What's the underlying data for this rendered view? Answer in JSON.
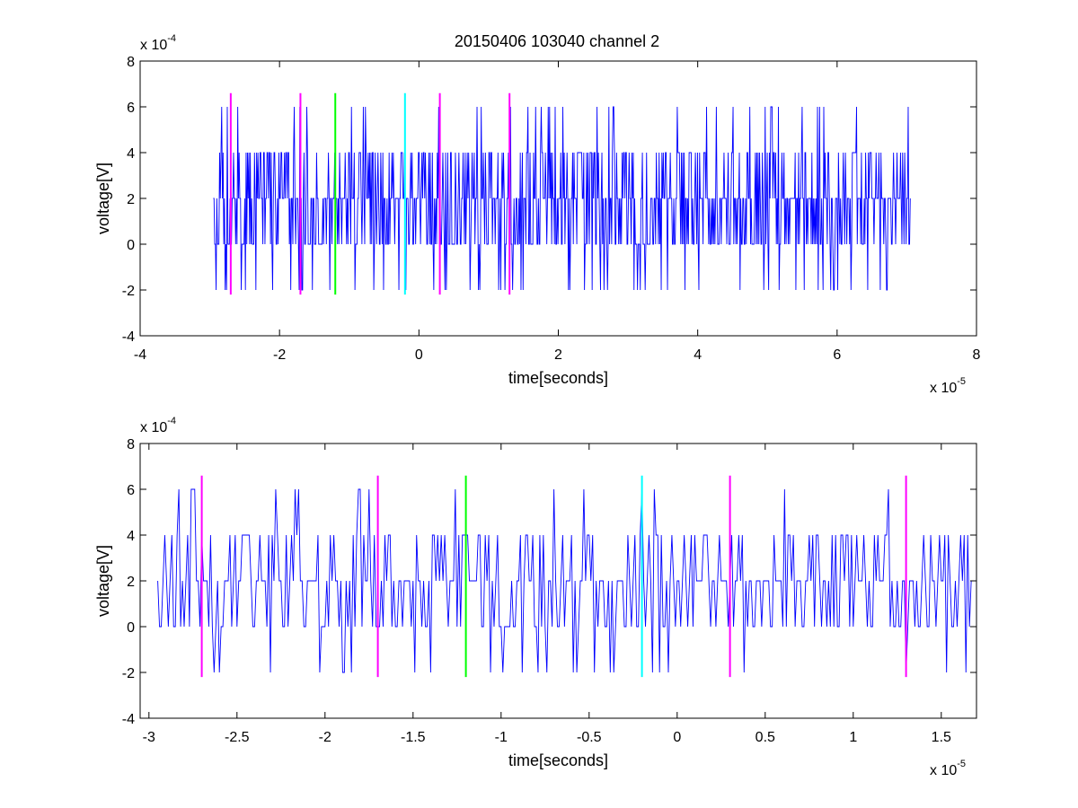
{
  "title": "20150406 103040 channel 2",
  "colors": {
    "signal": "#0000ff",
    "marker_magenta": "#ff00ff",
    "marker_green": "#00ff00",
    "marker_cyan": "#00ffff",
    "axes": "#000000",
    "background": "#ffffff"
  },
  "chart_data": [
    {
      "type": "line",
      "title": "20150406 103040 channel 2",
      "xlabel": "time[seconds]",
      "ylabel": "voltage[V]",
      "x_multiplier_label": "x 10",
      "x_multiplier_exp": "-5",
      "y_multiplier_label": "x 10",
      "y_multiplier_exp": "-4",
      "xlim": [
        -4,
        8
      ],
      "ylim": [
        -4,
        8
      ],
      "xticks": [
        -4,
        -2,
        0,
        2,
        4,
        6,
        8
      ],
      "xtick_labels": [
        "-4",
        "-2",
        "0",
        "2",
        "4",
        "6",
        "8"
      ],
      "yticks": [
        -4,
        -2,
        0,
        2,
        4,
        6,
        8
      ],
      "ytick_labels": [
        "-4",
        "-2",
        "0",
        "2",
        "4",
        "6",
        "8"
      ],
      "grid": false,
      "series": [
        {
          "color": "#0000ff",
          "x_range": [
            -2.95,
            7.05
          ],
          "levels": [
            -2,
            0,
            2,
            4,
            6
          ],
          "baseline": 2,
          "n_points": 1000
        }
      ],
      "markers": [
        {
          "x": -2.7,
          "color": "magenta",
          "y_range": [
            -2.2,
            6.6
          ]
        },
        {
          "x": -1.7,
          "color": "magenta",
          "y_range": [
            -2.2,
            6.6
          ]
        },
        {
          "x": -1.2,
          "color": "green",
          "y_range": [
            -2.2,
            6.6
          ]
        },
        {
          "x": -0.2,
          "color": "cyan",
          "y_range": [
            -2.2,
            6.6
          ]
        },
        {
          "x": 0.3,
          "color": "magenta",
          "y_range": [
            -2.2,
            6.6
          ]
        },
        {
          "x": 1.3,
          "color": "magenta",
          "y_range": [
            -2.2,
            6.6
          ]
        }
      ]
    },
    {
      "type": "line",
      "title": "",
      "xlabel": "time[seconds]",
      "ylabel": "voltage[V]",
      "x_multiplier_label": "x 10",
      "x_multiplier_exp": "-5",
      "y_multiplier_label": "x 10",
      "y_multiplier_exp": "-4",
      "xlim": [
        -3.05,
        1.7
      ],
      "ylim": [
        -4,
        8
      ],
      "xticks": [
        -3,
        -2.5,
        -2,
        -1.5,
        -1,
        -0.5,
        0,
        0.5,
        1,
        1.5
      ],
      "xtick_labels": [
        "-3",
        "-2.5",
        "-2",
        "-1.5",
        "-1",
        "-0.5",
        "0",
        "0.5",
        "1",
        "1.5"
      ],
      "yticks": [
        -4,
        -2,
        0,
        2,
        4,
        6,
        8
      ],
      "ytick_labels": [
        "-4",
        "-2",
        "0",
        "2",
        "4",
        "6",
        "8"
      ],
      "grid": false,
      "series": [
        {
          "color": "#0000ff",
          "x_range": [
            -2.95,
            1.7
          ],
          "levels": [
            -2,
            0,
            2,
            4,
            6
          ],
          "baseline": 2,
          "n_points": 466
        }
      ],
      "markers": [
        {
          "x": -2.7,
          "color": "magenta",
          "y_range": [
            -2.2,
            6.6
          ]
        },
        {
          "x": -1.7,
          "color": "magenta",
          "y_range": [
            -2.2,
            6.6
          ]
        },
        {
          "x": -1.2,
          "color": "green",
          "y_range": [
            -2.2,
            6.6
          ]
        },
        {
          "x": -0.2,
          "color": "cyan",
          "y_range": [
            -2.2,
            6.6
          ]
        },
        {
          "x": 0.3,
          "color": "magenta",
          "y_range": [
            -2.2,
            6.6
          ]
        },
        {
          "x": 1.3,
          "color": "magenta",
          "y_range": [
            -2.2,
            6.6
          ]
        }
      ]
    }
  ]
}
